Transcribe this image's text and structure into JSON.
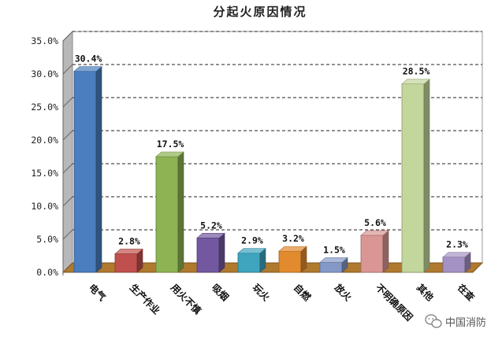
{
  "chart_data": {
    "type": "bar",
    "title": "分起火原因情况",
    "categories": [
      "电气",
      "生产作业",
      "用火不慎",
      "吸烟",
      "玩火",
      "自燃",
      "放火",
      "不明确原因",
      "其他",
      "在查"
    ],
    "values": [
      30.4,
      2.8,
      17.5,
      5.2,
      2.9,
      3.2,
      1.5,
      5.6,
      28.5,
      2.3
    ],
    "data_labels": [
      "30.4%",
      "2.8%",
      "17.5%",
      "5.2%",
      "2.9%",
      "3.2%",
      "1.5%",
      "5.6%",
      "28.5%",
      "2.3%"
    ],
    "bar_colors": [
      "#4a7ebf",
      "#c0504d",
      "#8db352",
      "#7357a0",
      "#3fa4be",
      "#e28a2e",
      "#8499c7",
      "#d99694",
      "#c3d69b",
      "#a492c4"
    ],
    "ylim": [
      0,
      35
    ],
    "yticks": [
      "0.0%",
      "5.0%",
      "10.0%",
      "15.0%",
      "20.0%",
      "25.0%",
      "30.0%",
      "35.0%"
    ],
    "grid": true,
    "xlabel": "",
    "ylabel": ""
  },
  "watermark": {
    "text": "中国消防",
    "icon": "wechat-icon"
  }
}
